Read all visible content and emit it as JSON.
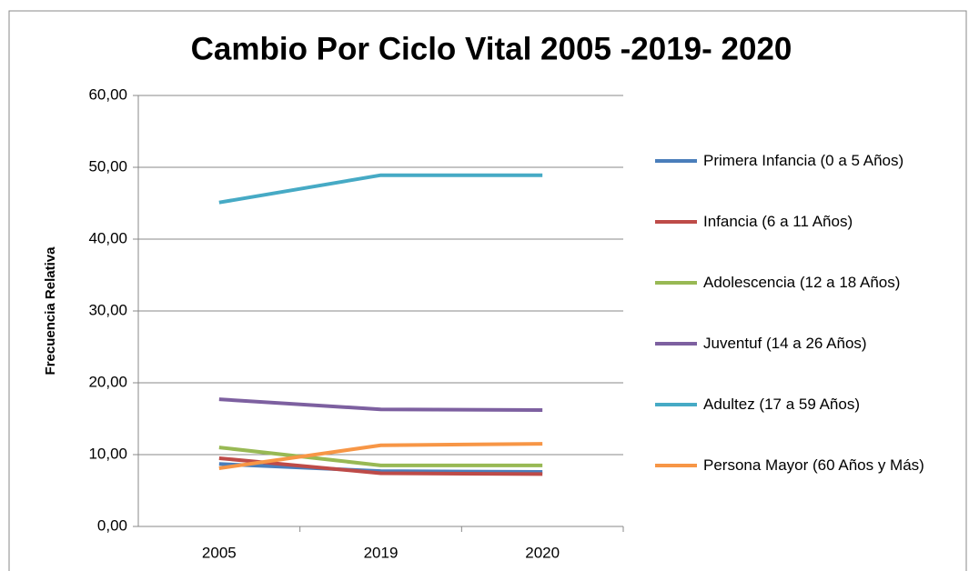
{
  "chart_data": {
    "type": "line",
    "title": "Cambio Por Ciclo Vital 2005 -2019- 2020",
    "y_label": "Frecuencia Relativa",
    "categories": [
      "2005",
      "2019",
      "2020"
    ],
    "series": [
      {
        "name": "Primera Infancia (0 a 5 Años)",
        "color": "#4a7ebb",
        "values": [
          8.7,
          7.7,
          7.6
        ]
      },
      {
        "name": "Infancia (6 a 11 Años)",
        "color": "#be4b48",
        "values": [
          9.5,
          7.4,
          7.3
        ]
      },
      {
        "name": "Adolescencia (12 a 18 Años)",
        "color": "#98b954",
        "values": [
          11.0,
          8.5,
          8.5
        ]
      },
      {
        "name": "Juventuf (14 a 26 Años)",
        "color": "#7d60a0",
        "values": [
          17.7,
          16.3,
          16.2
        ]
      },
      {
        "name": "Adultez (17 a 59 Años)",
        "color": "#46aac5",
        "values": [
          45.1,
          48.9,
          48.9
        ]
      },
      {
        "name": "Persona Mayor (60 Años y Más)",
        "color": "#f79646",
        "values": [
          8.1,
          11.3,
          11.5
        ]
      }
    ],
    "ylim": [
      0,
      60
    ],
    "yticks": [
      {
        "value": 0,
        "label": "0,00"
      },
      {
        "value": 10,
        "label": "10,00"
      },
      {
        "value": 20,
        "label": "20,00"
      },
      {
        "value": 30,
        "label": "30,00"
      },
      {
        "value": 40,
        "label": "40,00"
      },
      {
        "value": 50,
        "label": "50,00"
      },
      {
        "value": 60,
        "label": "60,00"
      }
    ],
    "grid": true,
    "legend": "right"
  }
}
